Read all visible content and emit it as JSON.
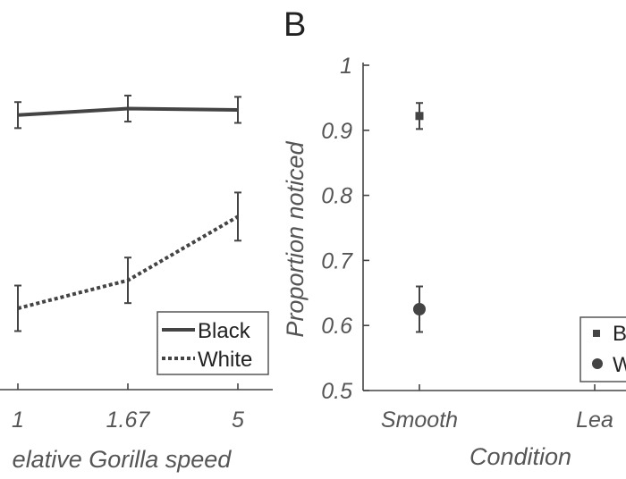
{
  "panels": {
    "a_label": "",
    "b_label": "B"
  },
  "chart_data": [
    {
      "type": "line",
      "panel": "A (partially cropped)",
      "title": "",
      "xlabel": "elative Gorilla speed",
      "ylabel": "",
      "x": [
        "1",
        "1.67",
        "5"
      ],
      "ylim": [
        0.5,
        1
      ],
      "series": [
        {
          "name": "Black",
          "style": "solid",
          "color": "#444444",
          "values": [
            0.922,
            0.932,
            0.93
          ],
          "err": [
            0.02,
            0.02,
            0.02
          ]
        },
        {
          "name": "White",
          "style": "dotted",
          "color": "#444444",
          "values": [
            0.625,
            0.668,
            0.766
          ],
          "err": [
            0.035,
            0.035,
            0.037
          ]
        }
      ],
      "legend": "bottom-right",
      "grid": false
    },
    {
      "type": "scatter",
      "panel": "B",
      "title": "",
      "xlabel": "Condition",
      "ylabel": "Proportion noticed",
      "categories": [
        "Smooth",
        "Lea"
      ],
      "yticks": [
        "0.5",
        "0.6",
        "0.7",
        "0.8",
        "0.9",
        "1"
      ],
      "ylim": [
        0.5,
        1
      ],
      "series": [
        {
          "name": "B",
          "marker": "square",
          "color": "#444444",
          "values": [
            0.922
          ],
          "err": [
            0.02
          ]
        },
        {
          "name": "W",
          "marker": "circle",
          "color": "#444444",
          "values": [
            0.625
          ],
          "err": [
            0.035
          ]
        }
      ],
      "legend": "bottom-right",
      "grid": false
    }
  ]
}
